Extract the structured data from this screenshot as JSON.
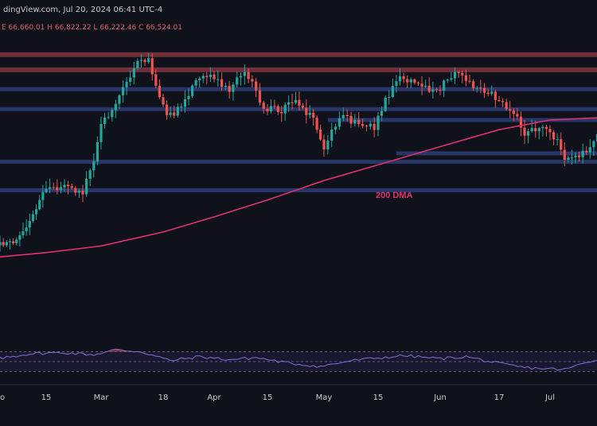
{
  "header": {
    "source": "dingView.com, Jul 20, 2024 06:41 UTC-4",
    "ohlc": "E 66,660.01  H 66,822.22  L 66,222.46  C 66,524.01"
  },
  "colors": {
    "background": "#0f121b",
    "bull": "#26a69a",
    "bear": "#ef5350",
    "resistance": "#7a3440",
    "support": "#2a3a6b",
    "ma": "#e0316e",
    "rsi": "#8e6bd8"
  },
  "chart_data": {
    "type": "candlestick",
    "annotation": "200 DMA",
    "x_tick_labels": [
      "o",
      "15",
      "Mar",
      "18",
      "Apr",
      "15",
      "May",
      "15",
      "Jun",
      "17",
      "Jul"
    ],
    "x_tick_dates": [
      "2024-02-01",
      "2024-02-15",
      "2024-03-01",
      "2024-03-18",
      "2024-04-01",
      "2024-04-15",
      "2024-05-01",
      "2024-05-15",
      "2024-06-01",
      "2024-06-17",
      "2024-07-01"
    ],
    "price_range": [
      29000,
      76000
    ],
    "resistance_levels": [
      73800,
      71300
    ],
    "support_levels": [
      68100,
      64800,
      63000,
      57500,
      56100,
      51400
    ],
    "support_level_starts": [
      null,
      null,
      "2024-05-02",
      "2024-05-20",
      null,
      null
    ],
    "ma_200": [
      [
        "2024-01-20",
        39700
      ],
      [
        "2024-02-01",
        40400
      ],
      [
        "2024-02-15",
        41100
      ],
      [
        "2024-03-01",
        42200
      ],
      [
        "2024-03-18",
        44500
      ],
      [
        "2024-04-01",
        47000
      ],
      [
        "2024-04-15",
        49800
      ],
      [
        "2024-05-01",
        53000
      ],
      [
        "2024-05-15",
        55600
      ],
      [
        "2024-06-01",
        58600
      ],
      [
        "2024-06-17",
        61400
      ],
      [
        "2024-07-01",
        63000
      ],
      [
        "2024-07-15",
        63400
      ]
    ],
    "anchors": [
      [
        "2024-01-20",
        41800
      ],
      [
        "2024-02-01",
        42600
      ],
      [
        "2024-02-06",
        43000
      ],
      [
        "2024-02-10",
        46500
      ],
      [
        "2024-02-15",
        51500
      ],
      [
        "2024-02-20",
        51800
      ],
      [
        "2024-02-25",
        51200
      ],
      [
        "2024-02-28",
        56000
      ],
      [
        "2024-03-01",
        62000
      ],
      [
        "2024-03-04",
        64500
      ],
      [
        "2024-03-06",
        67000
      ],
      [
        "2024-03-11",
        72300
      ],
      [
        "2024-03-14",
        73000
      ],
      [
        "2024-03-19",
        63500
      ],
      [
        "2024-03-23",
        65000
      ],
      [
        "2024-03-27",
        69500
      ],
      [
        "2024-04-01",
        70000
      ],
      [
        "2024-04-05",
        67500
      ],
      [
        "2024-04-09",
        71500
      ],
      [
        "2024-04-14",
        65000
      ],
      [
        "2024-04-19",
        64500
      ],
      [
        "2024-04-23",
        66500
      ],
      [
        "2024-04-28",
        63000
      ],
      [
        "2024-05-01",
        58500
      ],
      [
        "2024-05-05",
        63500
      ],
      [
        "2024-05-10",
        62500
      ],
      [
        "2024-05-14",
        61800
      ],
      [
        "2024-05-17",
        66500
      ],
      [
        "2024-05-21",
        70000
      ],
      [
        "2024-05-26",
        68800
      ],
      [
        "2024-05-31",
        67500
      ],
      [
        "2024-06-05",
        71200
      ],
      [
        "2024-06-08",
        69500
      ],
      [
        "2024-06-12",
        68000
      ],
      [
        "2024-06-17",
        66500
      ],
      [
        "2024-06-21",
        64000
      ],
      [
        "2024-06-24",
        61000
      ],
      [
        "2024-06-29",
        61800
      ],
      [
        "2024-07-03",
        59500
      ],
      [
        "2024-07-05",
        56500
      ],
      [
        "2024-07-08",
        57000
      ],
      [
        "2024-07-12",
        58000
      ],
      [
        "2024-07-14",
        60800
      ],
      [
        "2024-07-15",
        62000
      ]
    ],
    "rsi_anchors": [
      [
        "2024-01-20",
        56
      ],
      [
        "2024-02-01",
        56
      ],
      [
        "2024-02-10",
        66
      ],
      [
        "2024-02-20",
        68
      ],
      [
        "2024-02-28",
        64
      ],
      [
        "2024-03-05",
        74
      ],
      [
        "2024-03-12",
        70
      ],
      [
        "2024-03-20",
        52
      ],
      [
        "2024-03-28",
        60
      ],
      [
        "2024-04-05",
        54
      ],
      [
        "2024-04-12",
        58
      ],
      [
        "2024-04-20",
        48
      ],
      [
        "2024-04-30",
        40
      ],
      [
        "2024-05-08",
        52
      ],
      [
        "2024-05-16",
        58
      ],
      [
        "2024-05-22",
        62
      ],
      [
        "2024-06-01",
        56
      ],
      [
        "2024-06-08",
        60
      ],
      [
        "2024-06-17",
        46
      ],
      [
        "2024-06-24",
        38
      ],
      [
        "2024-07-05",
        34
      ],
      [
        "2024-07-10",
        46
      ],
      [
        "2024-07-15",
        58
      ]
    ],
    "rsi_levels": [
      70,
      50,
      30
    ]
  }
}
